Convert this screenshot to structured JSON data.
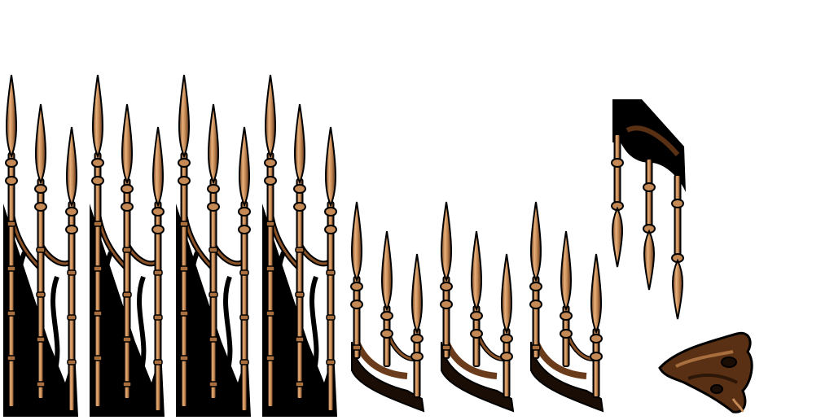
{
  "sheet": {
    "background": "#ffffff",
    "palette": {
      "bronze_light": "#e8b07a",
      "bronze_mid": "#c58955",
      "bronze_dark": "#6b3c1c",
      "outline": "#000000",
      "shadow": "#1a0d05"
    },
    "sprites": [
      {
        "name": "tall-spike-fence-1",
        "kind": "tall-fence"
      },
      {
        "name": "tall-spike-fence-2",
        "kind": "tall-fence"
      },
      {
        "name": "tall-spike-fence-3",
        "kind": "tall-fence"
      },
      {
        "name": "tall-spike-fence-4",
        "kind": "tall-fence"
      },
      {
        "name": "short-spike-fence-1",
        "kind": "short-fence"
      },
      {
        "name": "short-spike-fence-2",
        "kind": "short-fence"
      },
      {
        "name": "short-spike-fence-3",
        "kind": "short-fence"
      },
      {
        "name": "hanging-spikes",
        "kind": "hanging-spikes"
      },
      {
        "name": "skull-debris",
        "kind": "debris"
      }
    ]
  }
}
